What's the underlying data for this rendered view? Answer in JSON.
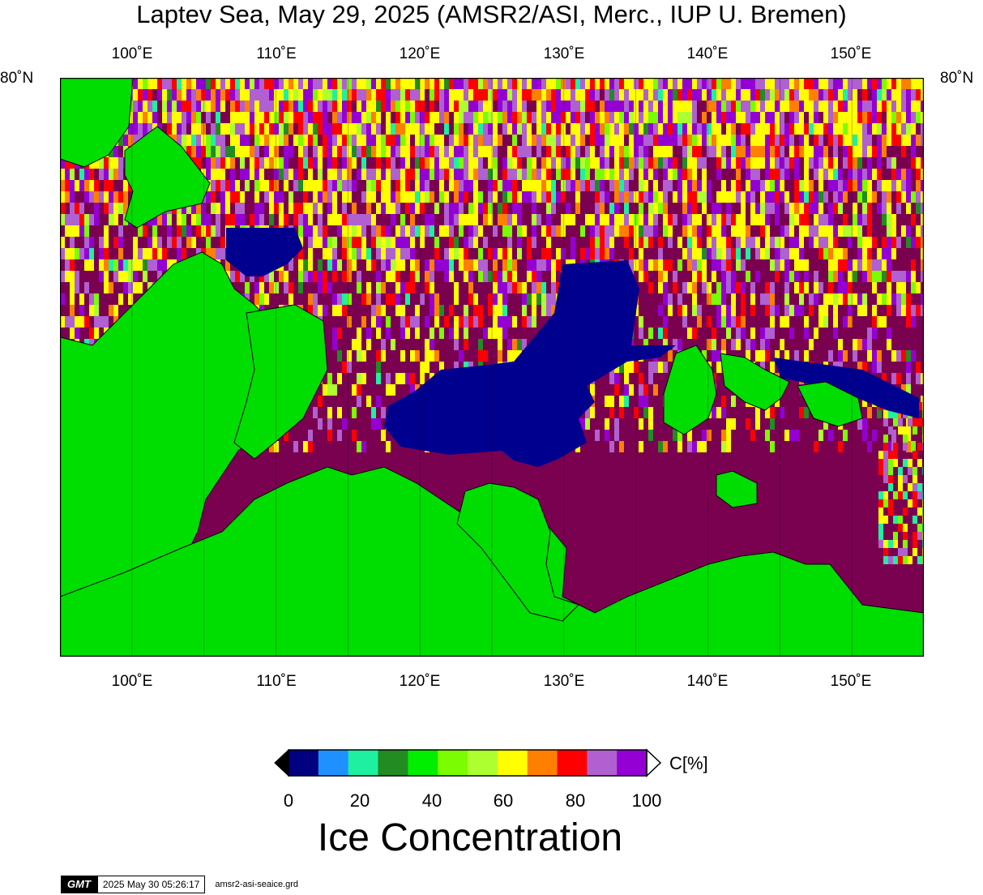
{
  "title": "Laptev Sea, May 29, 2025 (AMSR2/ASI, Merc., IUP U. Bremen)",
  "map": {
    "lon_labels": [
      "100˚E",
      "110˚E",
      "120˚E",
      "130˚E",
      "140˚E",
      "150˚E"
    ],
    "lon_values": [
      100,
      110,
      120,
      130,
      140,
      150
    ],
    "lon_range": [
      95,
      155
    ],
    "lat_label": "80˚N",
    "colors": {
      "land": "#00dd00",
      "open_water": "#00008f",
      "full_ice": "#7a0050",
      "coast": "#000000"
    }
  },
  "colorbar": {
    "title": "Ice Concentration",
    "unit": "C[%]",
    "ticks": [
      "0",
      "20",
      "40",
      "60",
      "80",
      "100"
    ],
    "colors": [
      "#000080",
      "#1e90ff",
      "#1ef0a0",
      "#228b22",
      "#00ee00",
      "#7cfc00",
      "#adff2f",
      "#ffff00",
      "#ff7f00",
      "#ff0000",
      "#b060d0",
      "#9400d3"
    ],
    "end_colors": {
      "below": "#000000",
      "above": "#ffffff"
    }
  },
  "footer": {
    "logo": "GMT",
    "timestamp": "2025 May 30 05:26:17",
    "filename": "amsr2-asi-seaice.grd"
  }
}
